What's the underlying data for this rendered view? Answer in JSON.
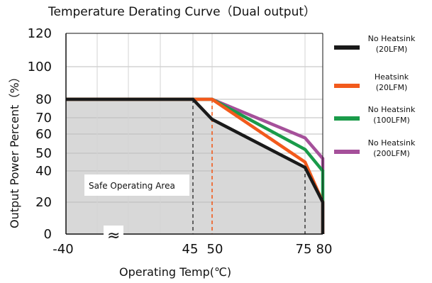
{
  "chart_data": {
    "type": "line",
    "title": "Temperature Derating Curve（Dual  output）",
    "xlabel": "Operating Temp(℃)",
    "ylabel": "Output Power Percent（%）",
    "x_ticks": [
      "-40",
      "45",
      "50",
      "75",
      "80"
    ],
    "y_ticks": [
      "0",
      "20",
      "40",
      "50",
      "60",
      "70",
      "80",
      "100",
      "120"
    ],
    "xlim": [
      -40,
      80
    ],
    "ylim": [
      0,
      120
    ],
    "area_label": "Safe Operating Area",
    "axis_break": "≈",
    "legend_position": "right",
    "series": [
      {
        "name": "No Heatsink (20LFM)",
        "legend_line1": "No Heatsink",
        "legend_line2": "(20LFM)",
        "color": "#1a1a1a",
        "x": [
          -40,
          45,
          50,
          75,
          80,
          80
        ],
        "y": [
          80,
          80,
          69,
          42,
          20,
          0
        ]
      },
      {
        "name": "Heatsink (20LFM)",
        "legend_line1": "Heatsink",
        "legend_line2": "(20LFM)",
        "color": "#f25a1c",
        "x": [
          -40,
          50,
          75,
          80,
          80
        ],
        "y": [
          80,
          80,
          45,
          20,
          0
        ]
      },
      {
        "name": "No Heatsink (100LFM)",
        "legend_line1": "No Heatsink",
        "legend_line2": "(100LFM)",
        "color": "#1a9b4a",
        "x": [
          -40,
          50,
          75,
          80,
          80
        ],
        "y": [
          80,
          80,
          52,
          40,
          20
        ]
      },
      {
        "name": "No Heatsink (200LFM)",
        "legend_line1": "No Heatsink",
        "legend_line2": "(200LFM)",
        "color": "#a5509a",
        "x": [
          -40,
          50,
          75,
          80,
          80
        ],
        "y": [
          80,
          80,
          58,
          47,
          40
        ]
      }
    ]
  }
}
